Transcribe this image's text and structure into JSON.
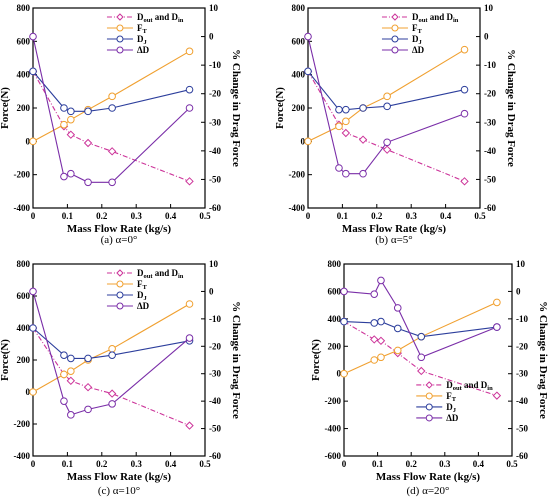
{
  "chart_data": [
    {
      "type": "line",
      "caption": "(a) α=0°",
      "xlabel": "Mass Flow Rate (kg/s)",
      "ylabel": "Force(N)",
      "y2label": "% Change in Drag Force",
      "xlim": [
        0,
        0.5
      ],
      "ylim": [
        -400,
        800
      ],
      "y2lim": [
        -60,
        10
      ],
      "xticks": [
        "0",
        "0.1",
        "0.2",
        "0.3",
        "0.4",
        "0.5"
      ],
      "yticks": [
        "-400",
        "-200",
        "0",
        "200",
        "400",
        "600",
        "800"
      ],
      "y2ticks": [
        "-60",
        "-50",
        "-40",
        "-30",
        "-20",
        "-10",
        "0",
        "10"
      ],
      "legend_position": "top-right",
      "series": [
        {
          "name": "D",
          "sub": "out",
          "suffix": " and D",
          "sub2": "in",
          "color": "#cc3399",
          "dash": "5,2,1,2",
          "marker": "diamond",
          "axis": "left",
          "x": [
            0,
            0.09,
            0.11,
            0.16,
            0.23,
            0.455
          ],
          "y": [
            420,
            90,
            40,
            -10,
            -60,
            -240
          ]
        },
        {
          "name": "F",
          "sub": "T",
          "color": "#f0a030",
          "dash": "",
          "marker": "circle",
          "axis": "left",
          "x": [
            0,
            0.09,
            0.11,
            0.16,
            0.23,
            0.455
          ],
          "y": [
            0,
            100,
            130,
            190,
            270,
            540
          ]
        },
        {
          "name": "D",
          "sub": "J",
          "color": "#2c3e9c",
          "dash": "",
          "marker": "circle",
          "axis": "left",
          "x": [
            0,
            0.09,
            0.11,
            0.16,
            0.23,
            0.455
          ],
          "y": [
            420,
            200,
            180,
            180,
            200,
            310
          ]
        },
        {
          "name": "ΔD",
          "color": "#7a2ea8",
          "dash": "",
          "marker": "circle",
          "axis": "right",
          "x": [
            0,
            0.09,
            0.11,
            0.16,
            0.23,
            0.455
          ],
          "y": [
            0,
            -49,
            -48,
            -51,
            -51,
            -25
          ]
        }
      ]
    },
    {
      "type": "line",
      "caption": "(b) α=5°",
      "xlabel": "Mass Flow Rate (kg/s)",
      "ylabel": "Force(N)",
      "y2label": "% Change in Drag Force",
      "xlim": [
        0,
        0.5
      ],
      "ylim": [
        -400,
        800
      ],
      "y2lim": [
        -60,
        10
      ],
      "xticks": [
        "0",
        "0.1",
        "0.2",
        "0.3",
        "0.4",
        "0.5"
      ],
      "yticks": [
        "-400",
        "-200",
        "0",
        "200",
        "400",
        "600",
        "800"
      ],
      "y2ticks": [
        "-60",
        "-50",
        "-40",
        "-30",
        "-20",
        "-10",
        "0",
        "10"
      ],
      "legend_position": "top-right",
      "series": [
        {
          "name": "D",
          "sub": "out",
          "suffix": " and D",
          "sub2": "in",
          "color": "#cc3399",
          "dash": "5,2,1,2",
          "marker": "diamond",
          "axis": "left",
          "x": [
            0,
            0.09,
            0.11,
            0.16,
            0.23,
            0.455
          ],
          "y": [
            420,
            100,
            50,
            10,
            -50,
            -240
          ]
        },
        {
          "name": "F",
          "sub": "T",
          "color": "#f0a030",
          "dash": "",
          "marker": "circle",
          "axis": "left",
          "x": [
            0,
            0.09,
            0.11,
            0.16,
            0.23,
            0.455
          ],
          "y": [
            0,
            90,
            120,
            200,
            270,
            550
          ]
        },
        {
          "name": "D",
          "sub": "J",
          "color": "#2c3e9c",
          "dash": "",
          "marker": "circle",
          "axis": "left",
          "x": [
            0,
            0.09,
            0.11,
            0.16,
            0.23,
            0.455
          ],
          "y": [
            420,
            190,
            190,
            200,
            210,
            310
          ]
        },
        {
          "name": "ΔD",
          "color": "#7a2ea8",
          "dash": "",
          "marker": "circle",
          "axis": "right",
          "x": [
            0,
            0.09,
            0.11,
            0.16,
            0.23,
            0.455
          ],
          "y": [
            0,
            -46,
            -48,
            -48,
            -37,
            -27
          ]
        }
      ]
    },
    {
      "type": "line",
      "caption": "(c) α=10°",
      "xlabel": "Mass Flow Rate (kg/s)",
      "ylabel": "Force(N)",
      "y2label": "% Change in Drag Force",
      "xlim": [
        0,
        0.5
      ],
      "ylim": [
        -400,
        800
      ],
      "y2lim": [
        -60,
        10
      ],
      "xticks": [
        "0",
        "0.1",
        "0.2",
        "0.3",
        "0.4",
        "0.5"
      ],
      "yticks": [
        "-400",
        "-200",
        "0",
        "200",
        "400",
        "600",
        "800"
      ],
      "y2ticks": [
        "-60",
        "-50",
        "-40",
        "-30",
        "-20",
        "-10",
        "0",
        "10"
      ],
      "legend_position": "top-right",
      "series": [
        {
          "name": "D",
          "sub": "out",
          "suffix": " and D",
          "sub2": "in",
          "color": "#cc3399",
          "dash": "5,2,1,2",
          "marker": "diamond",
          "axis": "left",
          "x": [
            0,
            0.09,
            0.11,
            0.16,
            0.23,
            0.455
          ],
          "y": [
            400,
            110,
            70,
            30,
            -10,
            -210
          ]
        },
        {
          "name": "F",
          "sub": "T",
          "color": "#f0a030",
          "dash": "",
          "marker": "circle",
          "axis": "left",
          "x": [
            0,
            0.09,
            0.11,
            0.16,
            0.23,
            0.455
          ],
          "y": [
            0,
            110,
            130,
            200,
            270,
            550
          ]
        },
        {
          "name": "D",
          "sub": "J",
          "color": "#2c3e9c",
          "dash": "",
          "marker": "circle",
          "axis": "left",
          "x": [
            0,
            0.09,
            0.11,
            0.16,
            0.23,
            0.455
          ],
          "y": [
            400,
            230,
            210,
            210,
            230,
            320
          ]
        },
        {
          "name": "ΔD",
          "color": "#7a2ea8",
          "dash": "",
          "marker": "circle",
          "axis": "right",
          "x": [
            0,
            0.09,
            0.11,
            0.16,
            0.23,
            0.455
          ],
          "y": [
            0,
            -40,
            -45,
            -43,
            -41,
            -17
          ]
        }
      ]
    },
    {
      "type": "line",
      "caption": "(d) α=20°",
      "xlabel": "Mass Flow Rate (kg/s)",
      "ylabel": "Force(N)",
      "y2label": "% Change in Drag Force",
      "xlim": [
        0,
        0.5
      ],
      "ylim": [
        -600,
        800
      ],
      "y2lim": [
        -60,
        10
      ],
      "xticks": [
        "0",
        "0.1",
        "0.2",
        "0.3",
        "0.4",
        "0.5"
      ],
      "yticks": [
        "-600",
        "-400",
        "-200",
        "0",
        "200",
        "400",
        "600",
        "800"
      ],
      "y2ticks": [
        "-60",
        "-50",
        "-40",
        "-30",
        "-20",
        "-10",
        "0",
        "10"
      ],
      "legend_position": "bottom-right",
      "series": [
        {
          "name": "D",
          "sub": "out",
          "suffix": " and D",
          "sub2": "in",
          "color": "#cc3399",
          "dash": "5,2,1,2",
          "marker": "diamond",
          "axis": "left",
          "x": [
            0,
            0.09,
            0.11,
            0.16,
            0.23,
            0.455
          ],
          "y": [
            380,
            250,
            240,
            150,
            20,
            -160
          ]
        },
        {
          "name": "F",
          "sub": "T",
          "color": "#f0a030",
          "dash": "",
          "marker": "circle",
          "axis": "left",
          "x": [
            0,
            0.09,
            0.11,
            0.16,
            0.23,
            0.455
          ],
          "y": [
            0,
            100,
            120,
            170,
            270,
            520
          ]
        },
        {
          "name": "D",
          "sub": "J",
          "color": "#2c3e9c",
          "dash": "",
          "marker": "circle",
          "axis": "left",
          "x": [
            0,
            0.09,
            0.11,
            0.16,
            0.23,
            0.455
          ],
          "y": [
            380,
            370,
            380,
            330,
            270,
            340
          ]
        },
        {
          "name": "ΔD",
          "color": "#7a2ea8",
          "dash": "",
          "marker": "circle",
          "axis": "right",
          "x": [
            0,
            0.09,
            0.11,
            0.16,
            0.23,
            0.455
          ],
          "y": [
            0,
            -1,
            4,
            -6,
            -24,
            -13
          ]
        }
      ]
    }
  ]
}
